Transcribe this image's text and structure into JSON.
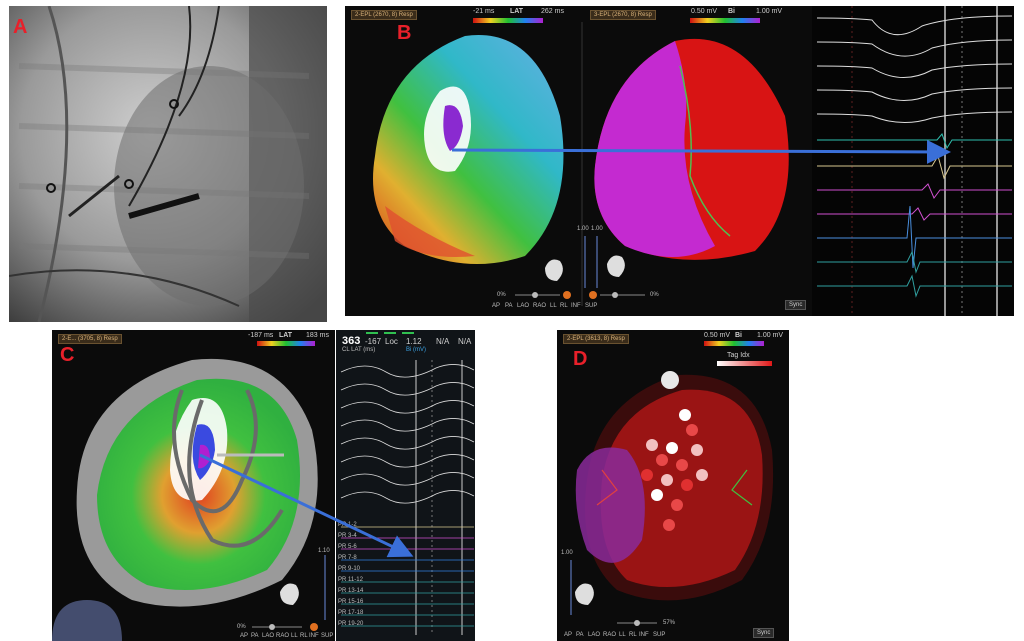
{
  "panels": {
    "a": {
      "label": "A"
    },
    "b": {
      "label": "B",
      "left_view": {
        "header": "2-EPL (2670, 8) Resp",
        "scale_title": "LAT",
        "scale_min": "-21 ms",
        "scale_max": "262 ms"
      },
      "right_view": {
        "header": "3-EPL (2670, 8) Resp",
        "scale_title": "Bi",
        "scale_min": "0.50 mV",
        "scale_max": "1.00 mV"
      },
      "controls": {
        "value_a": "1.00",
        "value_b": "1.00",
        "pct": "0%",
        "pct_right": "0%",
        "sync": "Sync"
      },
      "view_labels": [
        "AP",
        "PA",
        "LAO",
        "RAO",
        "LL",
        "RL",
        "INF",
        "SUP"
      ]
    },
    "c": {
      "label": "C",
      "header": "2-E... (3705, 8) Resp",
      "scale_title": "LAT",
      "scale_min": "-187 ms",
      "scale_max": "183 ms",
      "readout": {
        "cl": "363",
        "lat": "-167",
        "loc_label": "Loc",
        "value": "1.12",
        "na1": "N/A",
        "na2": "N/A",
        "cl_caption": "CL  LAT (ms)",
        "bi_caption": "Bi (mV)"
      },
      "controls": {
        "value": "1.10",
        "pct": "0%"
      },
      "view_labels": [
        "AP",
        "PA",
        "LAO",
        "RAO",
        "LL",
        "RL",
        "INF",
        "SUP"
      ],
      "channels": [
        "PR 1-2",
        "PR 3-4",
        "PR 5-6",
        "PR 7-8",
        "PR 9-10",
        "PR 11-12",
        "PR 13-14",
        "PR 15-16",
        "PR 17-18",
        "PR 19-20"
      ]
    },
    "d": {
      "label": "D",
      "header": "2-EPL (3613, 8) Resp",
      "scale_title": "Bi",
      "scale_min": "0.50 mV",
      "scale_max": "1.00 mV",
      "tag_label": "Tag Idx",
      "controls": {
        "value": "1.00",
        "pct": "57%",
        "sync": "Sync"
      },
      "view_labels": [
        "AP",
        "PA",
        "LAO",
        "RAO",
        "LL",
        "RL",
        "INF",
        "SUP"
      ]
    }
  },
  "colors": {
    "label_red": "#e8202a",
    "arrow_blue": "#3a6fd8"
  }
}
